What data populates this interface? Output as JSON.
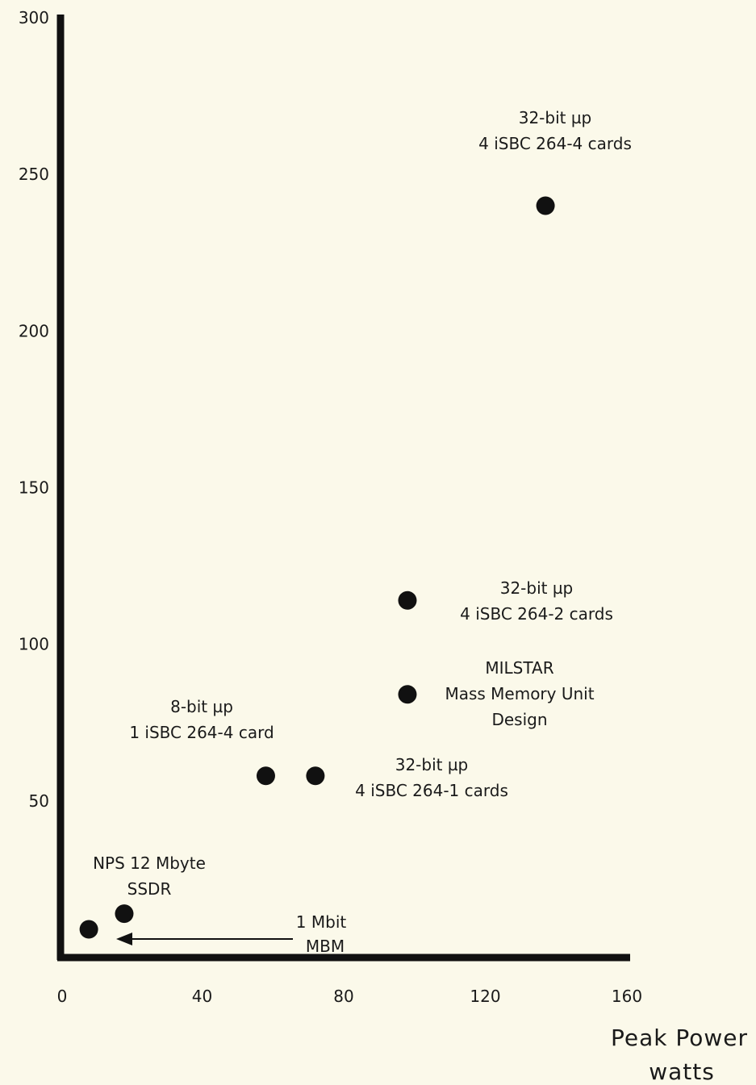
{
  "chart_data": {
    "type": "scatter",
    "xlim": [
      0,
      160
    ],
    "ylim": [
      0,
      300
    ],
    "x_ticks": [
      0,
      40,
      80,
      120,
      160
    ],
    "y_ticks": [
      50,
      100,
      150,
      200,
      250,
      300
    ],
    "xlabel": [
      "Peak Power",
      "watts"
    ],
    "ylabel": "",
    "grid": false,
    "points": [
      {
        "x": 137,
        "y": 240,
        "label": [
          "32-bit µp",
          "4  iSBC 264-4 cards"
        ]
      },
      {
        "x": 98,
        "y": 114,
        "label": [
          "32-bit µp",
          "4 iSBC 264-2 cards"
        ]
      },
      {
        "x": 98,
        "y": 84,
        "label": [
          "MILSTAR",
          "Mass Memory Unit",
          "Design"
        ]
      },
      {
        "x": 58,
        "y": 58,
        "label": [
          "8-bit µp",
          "1 iSBC 264-4 card"
        ]
      },
      {
        "x": 72,
        "y": 58,
        "label": [
          "32-bit µp",
          "4 iSBC 264-1 cards"
        ]
      },
      {
        "x": 18,
        "y": 14,
        "label": [
          "NPS 12 Mbyte",
          "SSDR"
        ]
      },
      {
        "x": 8,
        "y": 9,
        "label": []
      }
    ],
    "annotations": [
      {
        "text": [
          "1 Mbit",
          "MBM"
        ],
        "arrow": true
      }
    ]
  }
}
